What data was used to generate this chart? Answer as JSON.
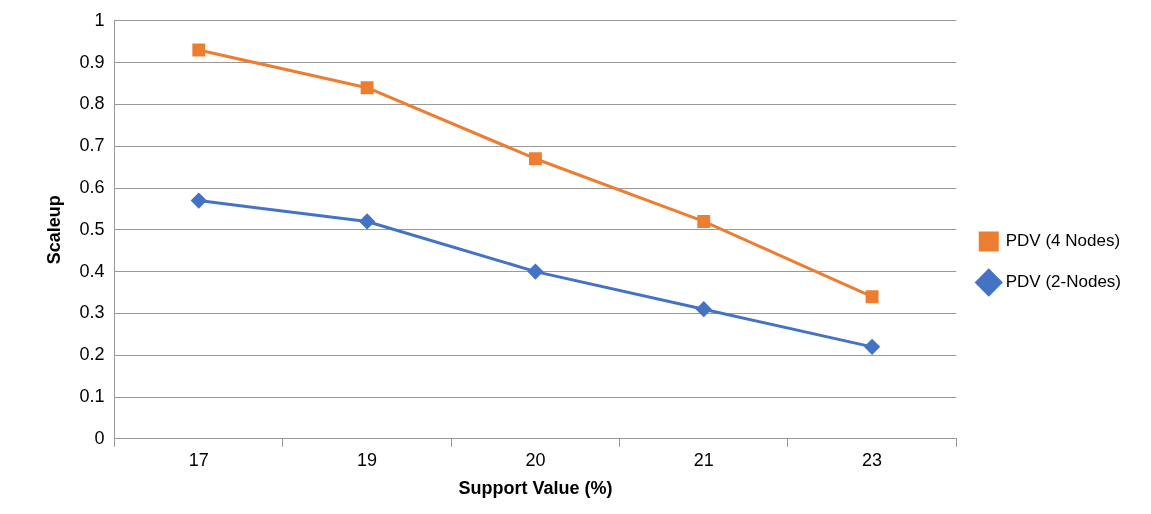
{
  "chart_data": {
    "type": "line",
    "xlabel": "Support Value (%)",
    "ylabel": "Scaleup",
    "categories": [
      "17",
      "19",
      "20",
      "21",
      "23"
    ],
    "series": [
      {
        "name": "PDV (4 Nodes)",
        "color": "#ed7d31",
        "marker": "square",
        "values": [
          0.93,
          0.84,
          0.67,
          0.52,
          0.34
        ]
      },
      {
        "name": "PDV (2-Nodes)",
        "color": "#4472c4",
        "marker": "diamond",
        "values": [
          0.57,
          0.52,
          0.4,
          0.31,
          0.22
        ]
      }
    ],
    "ylim": [
      0,
      1
    ],
    "yticks": [
      0,
      0.1,
      0.2,
      0.3,
      0.4,
      0.5,
      0.6,
      0.7,
      0.8,
      0.9,
      1
    ],
    "grid": "y",
    "legend": "right",
    "line_style": "solid"
  }
}
